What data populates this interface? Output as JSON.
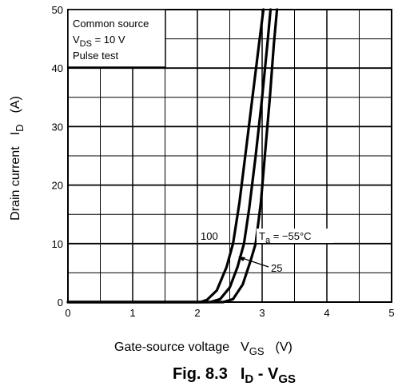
{
  "chart_data": {
    "type": "line",
    "x_ticks": [
      0,
      1,
      2,
      3,
      4,
      5
    ],
    "y_ticks": [
      0,
      10,
      20,
      30,
      40,
      50
    ],
    "xlim": [
      0,
      5
    ],
    "ylim": [
      0,
      50
    ],
    "grid": true,
    "xlabel": {
      "main": "Gate-source voltage",
      "sym": "V",
      "sub": "GS",
      "unit": "(V)"
    },
    "ylabel": {
      "main": "Drain current",
      "sym": "I",
      "sub": "D",
      "unit": "(A)"
    },
    "conditions": {
      "line1": "Common source",
      "line2_sym": "V",
      "line2_sub": "DS",
      "line2_val": " = 10 V",
      "line3": "Pulse test"
    },
    "caption": {
      "prefix": "Fig. 8.3",
      "a_sym": "I",
      "a_sub": "D",
      "dash": " - ",
      "b_sym": "V",
      "b_sub": "GS"
    },
    "annotations": {
      "ta_sym": "T",
      "ta_sub": "a",
      "ta_val": " = −55°C",
      "label_25": "25",
      "label_100": "100"
    },
    "series": [
      {
        "values": [
          [
            0,
            0
          ],
          [
            2.05,
            0
          ],
          [
            2.15,
            0.4
          ],
          [
            2.3,
            2
          ],
          [
            2.45,
            6
          ],
          [
            2.55,
            10
          ],
          [
            2.65,
            17
          ],
          [
            2.75,
            26
          ],
          [
            2.85,
            35
          ],
          [
            2.95,
            44
          ],
          [
            3.02,
            50
          ]
        ]
      },
      {
        "values": [
          [
            0,
            0
          ],
          [
            2.2,
            0
          ],
          [
            2.35,
            0.5
          ],
          [
            2.5,
            2.5
          ],
          [
            2.62,
            6
          ],
          [
            2.72,
            10
          ],
          [
            2.8,
            16
          ],
          [
            2.9,
            25
          ],
          [
            3.0,
            35
          ],
          [
            3.08,
            44
          ],
          [
            3.13,
            50
          ]
        ]
      },
      {
        "values": [
          [
            0,
            0
          ],
          [
            2.4,
            0
          ],
          [
            2.55,
            0.5
          ],
          [
            2.7,
            3
          ],
          [
            2.82,
            7
          ],
          [
            2.9,
            10
          ],
          [
            2.98,
            17
          ],
          [
            3.05,
            26
          ],
          [
            3.12,
            35
          ],
          [
            3.18,
            44
          ],
          [
            3.23,
            50
          ]
        ]
      }
    ]
  }
}
